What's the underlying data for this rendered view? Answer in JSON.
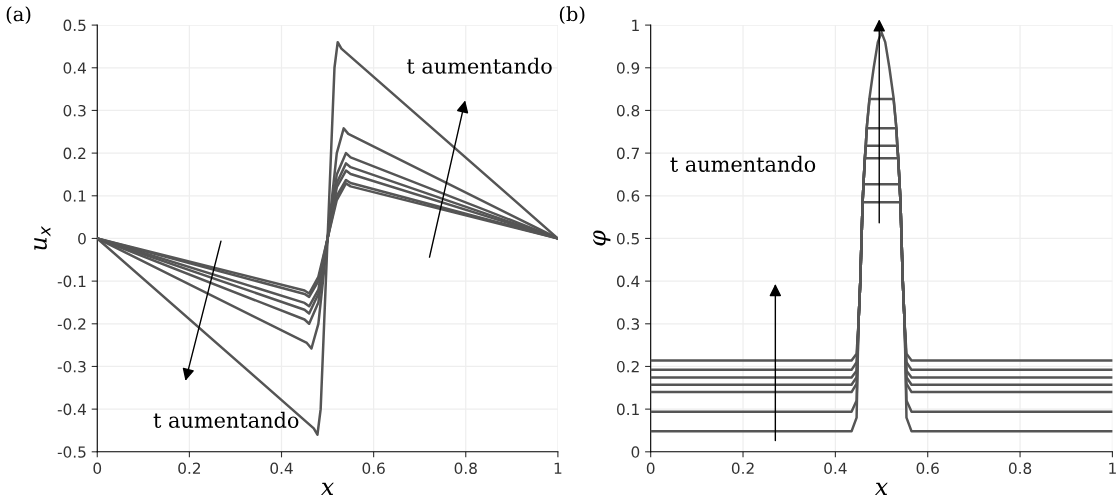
{
  "chart_data": [
    {
      "type": "line",
      "title": "(a)",
      "xlabel": "x",
      "ylabel": "u$_{x}$",
      "xlim": [
        0,
        1
      ],
      "ylim": [
        -0.5,
        0.5
      ],
      "xticks": [
        0,
        0.2,
        0.4,
        0.6,
        0.8,
        1
      ],
      "yticks": [
        -0.5,
        -0.4,
        -0.3,
        -0.2,
        -0.1,
        0,
        0.1,
        0.2,
        0.3,
        0.4,
        0.5
      ],
      "grid": true,
      "annotations": [
        "t aumentando",
        "t aumentando"
      ],
      "series": [
        {
          "color": "#555555",
          "x": [
            0,
            0.47,
            0.478,
            0.485,
            0.5,
            0.515,
            0.522,
            0.53,
            1
          ],
          "values": [
            0,
            -0.445,
            -0.46,
            -0.4,
            0,
            0.4,
            0.46,
            0.445,
            0
          ]
        },
        {
          "color": "#555555",
          "x": [
            0,
            0.455,
            0.465,
            0.48,
            0.5,
            0.52,
            0.535,
            0.545,
            1
          ],
          "values": [
            0,
            -0.245,
            -0.258,
            -0.2,
            0,
            0.2,
            0.258,
            0.245,
            0
          ]
        },
        {
          "color": "#555555",
          "x": [
            0,
            0.45,
            0.46,
            0.48,
            0.5,
            0.52,
            0.54,
            0.55,
            1
          ],
          "values": [
            0,
            -0.19,
            -0.2,
            -0.15,
            0,
            0.15,
            0.2,
            0.19,
            0
          ]
        },
        {
          "color": "#555555",
          "x": [
            0,
            0.45,
            0.46,
            0.48,
            0.5,
            0.52,
            0.54,
            0.55,
            1
          ],
          "values": [
            0,
            -0.167,
            -0.176,
            -0.13,
            0,
            0.13,
            0.176,
            0.167,
            0
          ]
        },
        {
          "color": "#555555",
          "x": [
            0,
            0.45,
            0.46,
            0.48,
            0.5,
            0.52,
            0.54,
            0.55,
            1
          ],
          "values": [
            0,
            -0.151,
            -0.159,
            -0.12,
            0,
            0.12,
            0.159,
            0.151,
            0
          ]
        },
        {
          "color": "#555555",
          "x": [
            0,
            0.45,
            0.46,
            0.48,
            0.5,
            0.52,
            0.54,
            0.55,
            1
          ],
          "values": [
            0,
            -0.13,
            -0.137,
            -0.1,
            0,
            0.1,
            0.137,
            0.13,
            0
          ]
        },
        {
          "color": "#555555",
          "x": [
            0,
            0.45,
            0.46,
            0.48,
            0.5,
            0.52,
            0.54,
            0.55,
            1
          ],
          "values": [
            0,
            -0.122,
            -0.129,
            -0.09,
            0,
            0.09,
            0.129,
            0.122,
            0
          ]
        }
      ]
    },
    {
      "type": "line",
      "title": "(b)",
      "xlabel": "x",
      "ylabel": "φ",
      "xlim": [
        0,
        1
      ],
      "ylim": [
        0,
        1
      ],
      "xticks": [
        0,
        0.2,
        0.4,
        0.6,
        0.8,
        1
      ],
      "yticks": [
        0,
        0.1,
        0.2,
        0.3,
        0.4,
        0.5,
        0.6,
        0.7,
        0.8,
        0.9,
        1
      ],
      "grid": true,
      "annotations": [
        "t aumentando"
      ],
      "series": [
        {
          "color": "#555555",
          "x": [
            0,
            0.435,
            0.446,
            0.45,
            0.454,
            0.459,
            0.461,
            0.464,
            0.466,
            0.468,
            0.474,
            0.483,
            0.492,
            0.5,
            0.508,
            0.517,
            0.526,
            0.532,
            0.534,
            0.536,
            0.539,
            0.541,
            0.546,
            0.55,
            0.554,
            0.565,
            1
          ],
          "values": [
            0.214,
            0.214,
            0.23,
            0.3,
            0.4,
            0.585,
            0.63,
            0.69,
            0.72,
            0.76,
            0.83,
            0.9,
            0.96,
            0.983,
            0.96,
            0.9,
            0.83,
            0.76,
            0.72,
            0.69,
            0.63,
            0.585,
            0.4,
            0.3,
            0.23,
            0.214,
            0.214
          ]
        },
        {
          "color": "#555555",
          "x": [
            0,
            0.435,
            0.446,
            0.45,
            0.454,
            0.459,
            0.461,
            0.464,
            0.466,
            0.468,
            0.474,
            0.526,
            0.532,
            0.534,
            0.536,
            0.539,
            0.541,
            0.546,
            0.55,
            0.554,
            0.565,
            1
          ],
          "values": [
            0.192,
            0.192,
            0.21,
            0.3,
            0.4,
            0.585,
            0.63,
            0.69,
            0.72,
            0.76,
            0.827,
            0.827,
            0.76,
            0.72,
            0.69,
            0.63,
            0.585,
            0.4,
            0.3,
            0.21,
            0.192,
            0.192
          ]
        },
        {
          "color": "#555555",
          "x": [
            0,
            0.435,
            0.446,
            0.45,
            0.454,
            0.459,
            0.461,
            0.464,
            0.466,
            0.468,
            0.532,
            0.534,
            0.536,
            0.539,
            0.541,
            0.546,
            0.55,
            0.554,
            0.565,
            1
          ],
          "values": [
            0.174,
            0.174,
            0.19,
            0.3,
            0.4,
            0.585,
            0.63,
            0.69,
            0.72,
            0.758,
            0.758,
            0.72,
            0.69,
            0.63,
            0.585,
            0.4,
            0.3,
            0.19,
            0.174,
            0.174
          ]
        },
        {
          "color": "#555555",
          "x": [
            0,
            0.435,
            0.446,
            0.45,
            0.454,
            0.459,
            0.461,
            0.464,
            0.466,
            0.534,
            0.536,
            0.539,
            0.541,
            0.546,
            0.55,
            0.554,
            0.565,
            1
          ],
          "values": [
            0.157,
            0.157,
            0.175,
            0.3,
            0.4,
            0.585,
            0.63,
            0.69,
            0.717,
            0.717,
            0.69,
            0.63,
            0.585,
            0.4,
            0.3,
            0.175,
            0.157,
            0.157
          ]
        },
        {
          "color": "#555555",
          "x": [
            0,
            0.435,
            0.446,
            0.45,
            0.454,
            0.459,
            0.461,
            0.464,
            0.536,
            0.539,
            0.541,
            0.546,
            0.55,
            0.554,
            0.565,
            1
          ],
          "values": [
            0.14,
            0.14,
            0.16,
            0.3,
            0.4,
            0.585,
            0.63,
            0.688,
            0.688,
            0.63,
            0.585,
            0.4,
            0.3,
            0.16,
            0.14,
            0.14
          ]
        },
        {
          "color": "#555555",
          "x": [
            0,
            0.435,
            0.446,
            0.45,
            0.454,
            0.459,
            0.461,
            0.539,
            0.541,
            0.546,
            0.55,
            0.554,
            0.565,
            1
          ],
          "values": [
            0.094,
            0.094,
            0.12,
            0.3,
            0.4,
            0.585,
            0.627,
            0.627,
            0.585,
            0.4,
            0.3,
            0.12,
            0.094,
            0.094
          ]
        },
        {
          "color": "#555555",
          "x": [
            0,
            0.435,
            0.446,
            0.45,
            0.454,
            0.459,
            0.541,
            0.546,
            0.55,
            0.554,
            0.565,
            1
          ],
          "values": [
            0.048,
            0.048,
            0.08,
            0.3,
            0.4,
            0.585,
            0.585,
            0.4,
            0.3,
            0.08,
            0.048,
            0.048
          ]
        }
      ]
    }
  ]
}
